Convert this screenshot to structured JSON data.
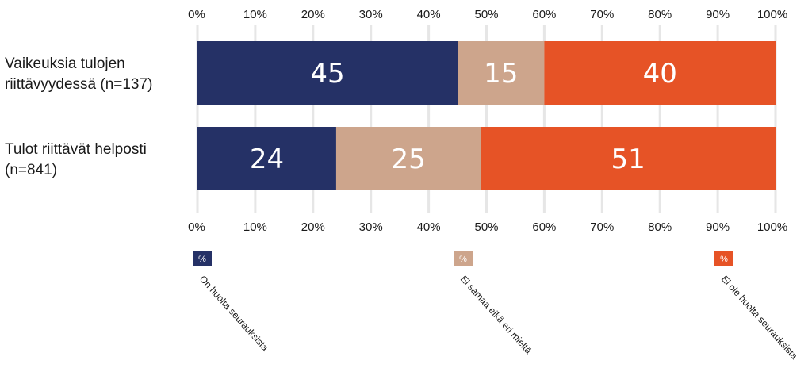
{
  "chart_data": {
    "type": "bar",
    "orientation": "horizontal",
    "stacked": true,
    "categories": [
      "Vaikeuksia tulojen riittävyydessä (n=137)",
      "Tulot riittävät helposti (n=841)"
    ],
    "category_lines": [
      [
        "Vaikeuksia tulojen",
        "riittävyydessä (n=137)"
      ],
      [
        "Tulot riittävät helposti",
        "(n=841)"
      ]
    ],
    "series": [
      {
        "name": "On huolta seurauksista",
        "values": [
          45,
          24
        ],
        "color": "#253166"
      },
      {
        "name": "Ei samaa eikä eri mieltä",
        "values": [
          15,
          25
        ],
        "color": "#cda58c"
      },
      {
        "name": "Ei ole huolta seurauksista",
        "values": [
          40,
          51
        ],
        "color": "#e65326"
      }
    ],
    "xlim": [
      0,
      100
    ],
    "xticks": [
      "0%",
      "10%",
      "20%",
      "30%",
      "40%",
      "50%",
      "60%",
      "70%",
      "80%",
      "90%",
      "100%"
    ],
    "grid": true,
    "legend_swatch_text": "%",
    "legend_placement": "bottom",
    "title": "",
    "xlabel": "",
    "ylabel": ""
  }
}
